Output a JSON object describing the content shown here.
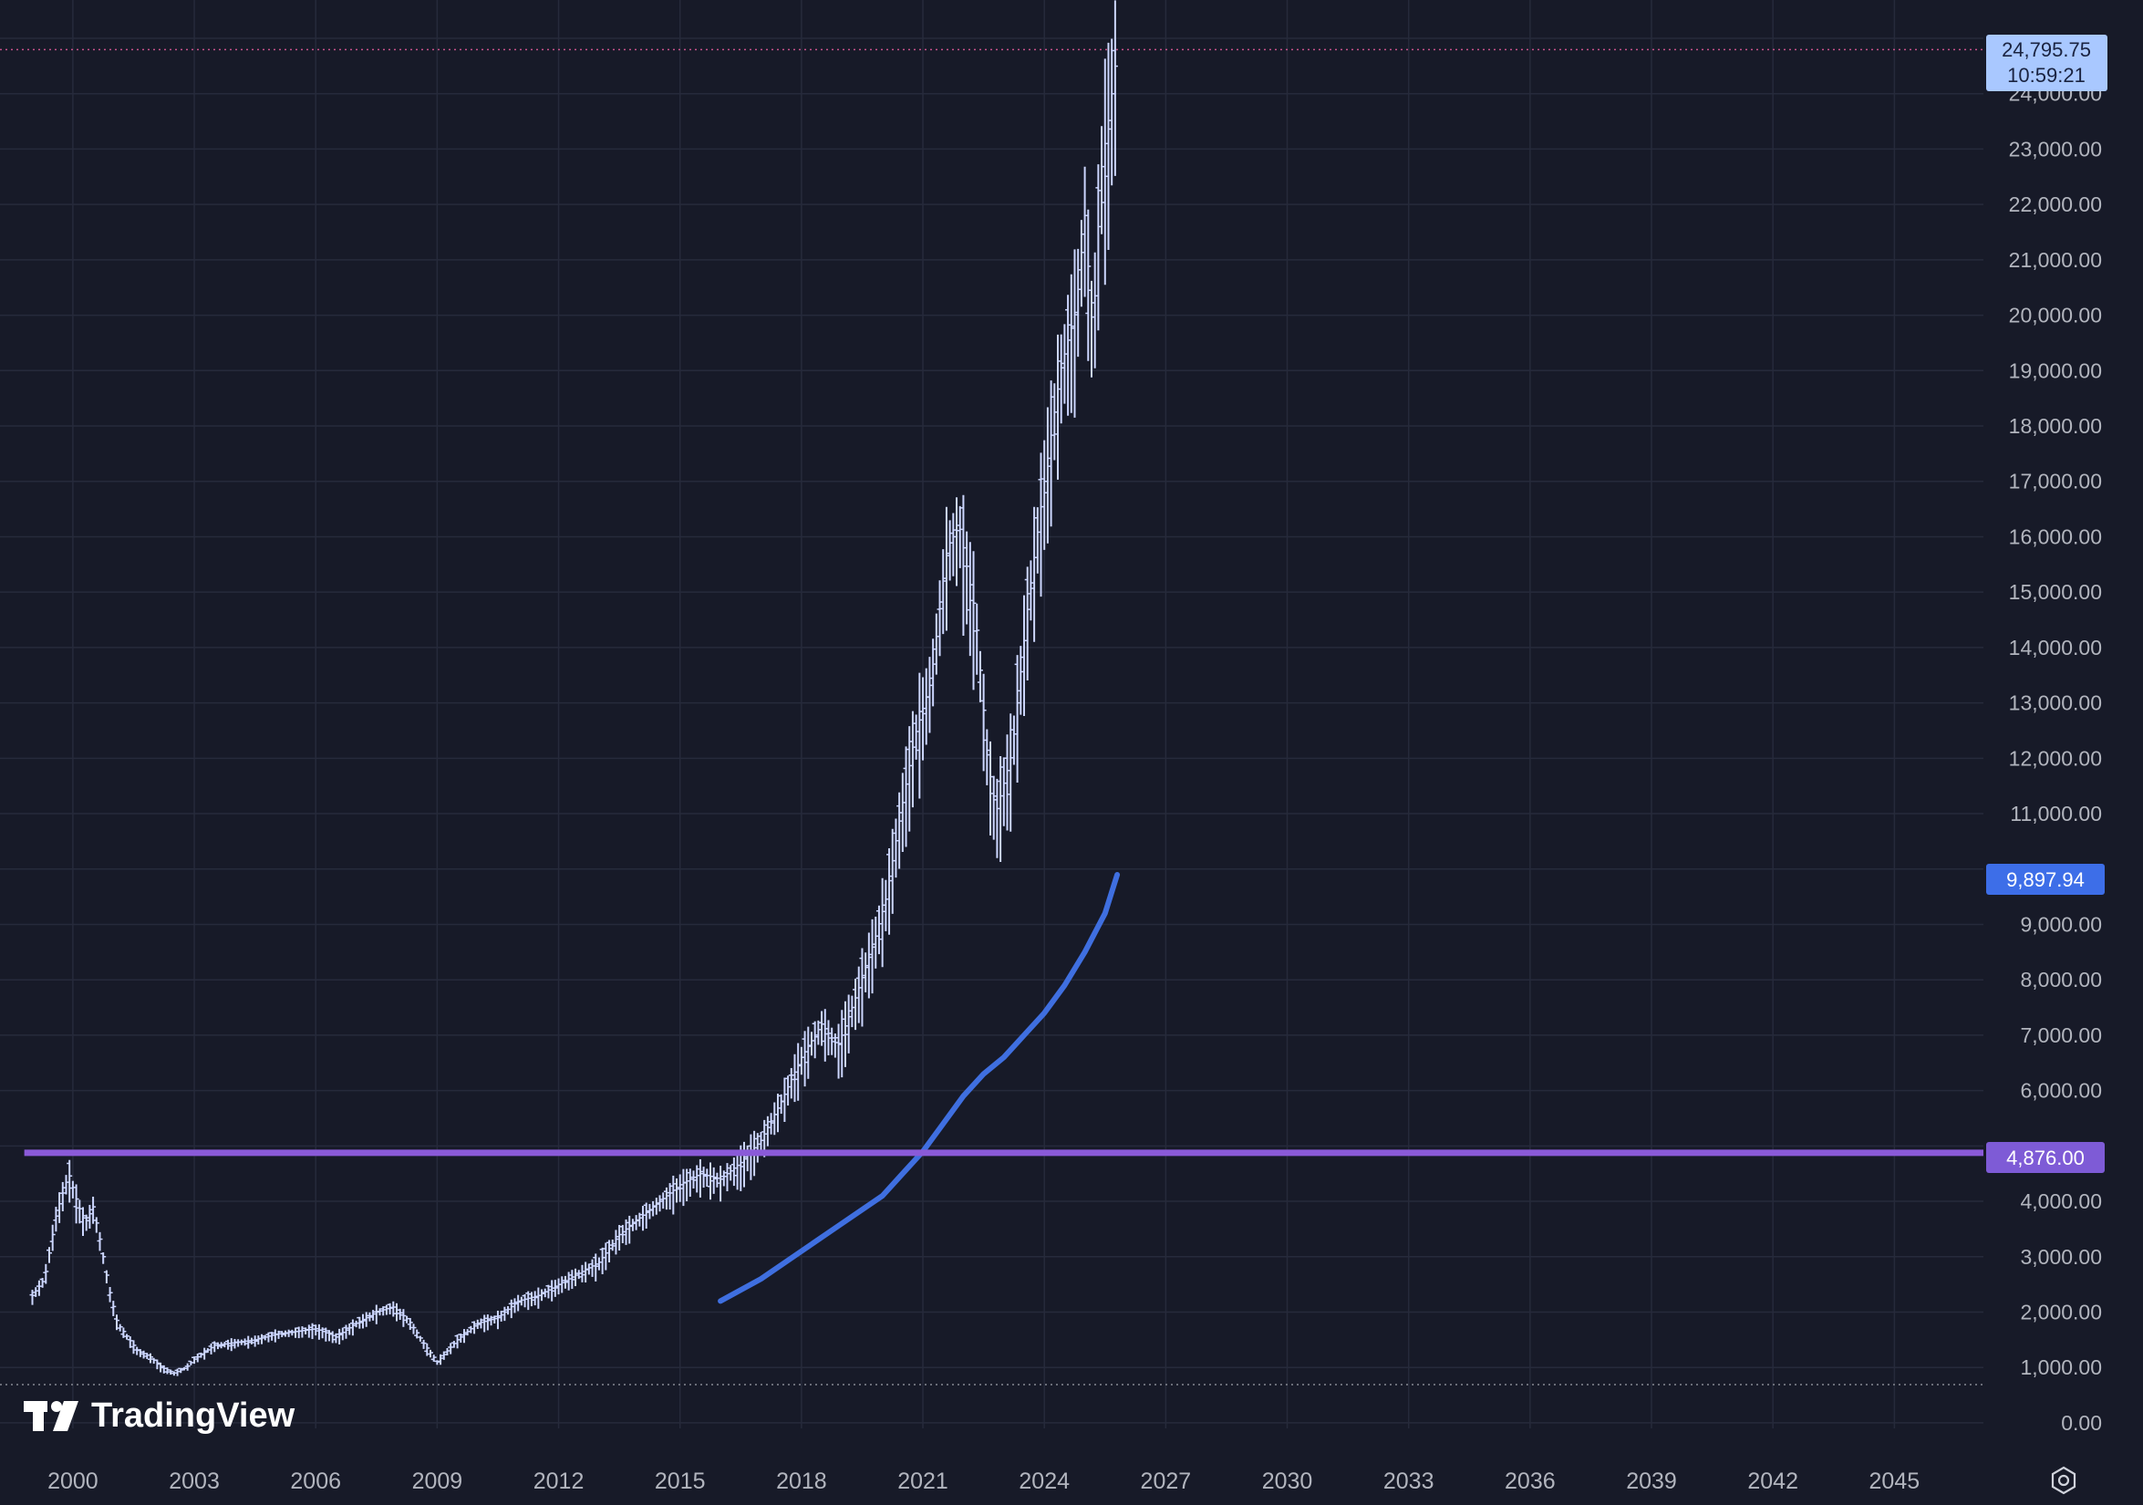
{
  "brand": {
    "name": "TradingView",
    "logo_text": "TV"
  },
  "colors": {
    "background": "#171a28",
    "grid": "#262a3b",
    "axis_text": "#b2b5be",
    "price_bars": "#cdd7ff",
    "moving_average": "#3f6fe0",
    "level_line": "#8a5ad8",
    "current_price_label": "#a9c8ff",
    "ma_label": "#3d6ee8",
    "level_label": "#7e5bd6"
  },
  "icons": {
    "settings": "settings-icon"
  },
  "chart_data": {
    "type": "line",
    "chart_subtype": "ohlc-bars-monthly",
    "title": "",
    "xlabel": "",
    "ylabel": "",
    "x_ticks": [
      "2000",
      "2003",
      "2006",
      "2009",
      "2012",
      "2015",
      "2018",
      "2021",
      "2024",
      "2027",
      "2030",
      "2033",
      "2036",
      "2039",
      "2042",
      "2045"
    ],
    "y_ticks": [
      "0.00",
      "1,000.00",
      "2,000.00",
      "3,000.00",
      "4,000.00",
      "6,000.00",
      "7,000.00",
      "8,000.00",
      "9,000.00",
      "11,000.00",
      "12,000.00",
      "13,000.00",
      "14,000.00",
      "15,000.00",
      "16,000.00",
      "17,000.00",
      "18,000.00",
      "19,000.00",
      "20,000.00",
      "21,000.00",
      "22,000.00",
      "23,000.00",
      "24,000.00"
    ],
    "xlim": [
      1998.2,
      2047.2
    ],
    "ylim": [
      -100,
      25000
    ],
    "grid": true,
    "legend": "none",
    "price_series": {
      "x": [
        1999.0,
        1999.3,
        1999.6,
        1999.9,
        2000.1,
        2000.3,
        2000.5,
        2000.7,
        2000.9,
        2001.1,
        2001.3,
        2001.6,
        2001.9,
        2002.2,
        2002.5,
        2002.8,
        2003.0,
        2003.5,
        2004.0,
        2004.5,
        2005.0,
        2005.5,
        2006.0,
        2006.5,
        2007.0,
        2007.5,
        2007.9,
        2008.3,
        2008.7,
        2009.0,
        2009.5,
        2010.0,
        2010.5,
        2011.0,
        2011.5,
        2012.0,
        2012.5,
        2013.0,
        2013.5,
        2014.0,
        2014.5,
        2015.0,
        2015.5,
        2016.0,
        2016.5,
        2017.0,
        2017.5,
        2018.0,
        2018.5,
        2018.9,
        2019.3,
        2019.8,
        2020.1,
        2020.4,
        2020.8,
        2021.2,
        2021.6,
        2021.9,
        2022.3,
        2022.6,
        2022.8,
        2023.2,
        2023.6,
        2024.0,
        2024.4,
        2024.8,
        2025.0,
        2025.2,
        2025.4,
        2025.6,
        2025.8
      ],
      "close": [
        2300,
        2600,
        3800,
        4500,
        4000,
        3600,
        3900,
        3200,
        2400,
        1800,
        1600,
        1300,
        1200,
        1000,
        900,
        1000,
        1150,
        1400,
        1450,
        1500,
        1600,
        1650,
        1700,
        1550,
        1800,
        2000,
        2100,
        1850,
        1400,
        1100,
        1500,
        1800,
        1900,
        2200,
        2300,
        2500,
        2700,
        2900,
        3400,
        3700,
        4000,
        4300,
        4500,
        4400,
        4700,
        5100,
        5800,
        6600,
        7200,
        6800,
        7600,
        8700,
        9500,
        10800,
        12400,
        13400,
        15800,
        16200,
        14600,
        12000,
        11000,
        12100,
        14800,
        17000,
        19000,
        20200,
        21800,
        19600,
        22600,
        23600,
        24795.75
      ]
    },
    "moving_average": {
      "x": [
        2016.0,
        2017.0,
        2018.0,
        2019.0,
        2020.0,
        2020.5,
        2021.0,
        2021.5,
        2022.0,
        2022.5,
        2023.0,
        2023.5,
        2024.0,
        2024.5,
        2025.0,
        2025.5,
        2025.8
      ],
      "values": [
        2200,
        2600,
        3100,
        3600,
        4100,
        4500,
        4900,
        5400,
        5900,
        6300,
        6600,
        7000,
        7400,
        7900,
        8500,
        9200,
        9897.94
      ]
    },
    "horizontal_level": {
      "value": 4876.0,
      "label": "4,876.00"
    },
    "labels": {
      "last_price": "24,795.75",
      "countdown": "10:59:21",
      "ma_value": "9,897.94",
      "level_value": "4,876.00"
    }
  }
}
